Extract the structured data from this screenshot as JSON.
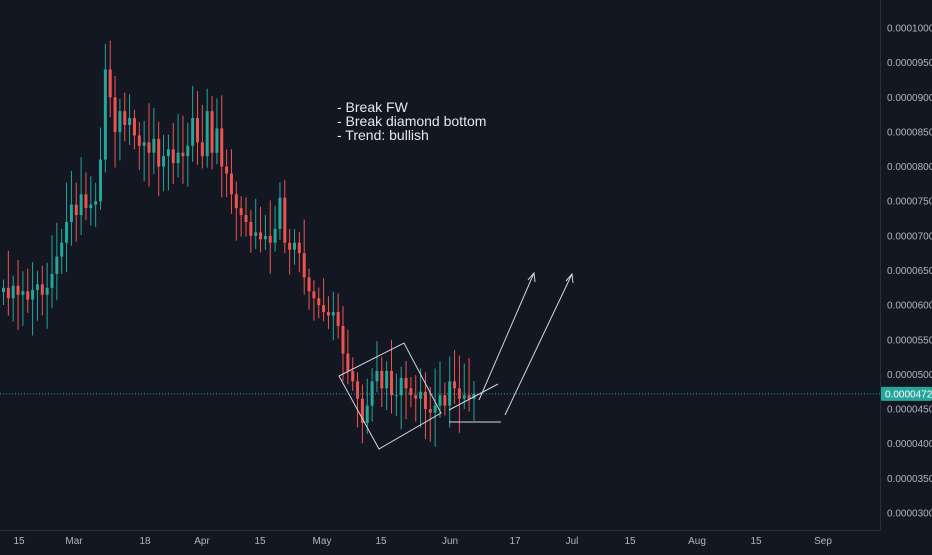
{
  "chart_data": {
    "type": "candlestick",
    "title": "",
    "xlabel": "",
    "ylabel": "",
    "ylim": [
      2.9e-05,
      0.0001035
    ],
    "y_ticks": [
      "0.0000300",
      "0.0000350",
      "0.0000400",
      "0.0000450",
      "0.0000500",
      "0.0000550",
      "0.0000600",
      "0.0000650",
      "0.0000700",
      "0.0000750",
      "0.0000800",
      "0.0000850",
      "0.0000900",
      "0.0000950",
      "0.0001000"
    ],
    "x_ticks": [
      "15",
      "Mar",
      "18",
      "Apr",
      "15",
      "May",
      "15",
      "Jun",
      "17",
      "Jul",
      "15",
      "Aug",
      "15",
      "Sep"
    ],
    "current_price": "0.0000472",
    "current_price_value": 4.72e-05,
    "colors": {
      "background": "#131722",
      "up": "#26a69a",
      "down": "#ef5350",
      "price_line": "#26a69a",
      "text": "#b2b5be",
      "drawing": "#d1d4dc"
    },
    "close_series": [
      6.25e-05,
      6.1e-05,
      6.28e-05,
      6.15e-05,
      6.2e-05,
      6.08e-05,
      6.22e-05,
      6.3e-05,
      6.15e-05,
      6.25e-05,
      6.45e-05,
      6.7e-05,
      6.9e-05,
      7.2e-05,
      7.45e-05,
      7.3e-05,
      7.6e-05,
      7.4e-05,
      7.45e-05,
      7.5e-05,
      8.1e-05,
      9.4e-05,
      9e-05,
      8.5e-05,
      8.8e-05,
      8.6e-05,
      8.7e-05,
      8.45e-05,
      8.3e-05,
      8.35e-05,
      8.2e-05,
      8.4e-05,
      8e-05,
      8.15e-05,
      8.25e-05,
      8.05e-05,
      8.2e-05,
      8.15e-05,
      8.3e-05,
      8.7e-05,
      8.35e-05,
      8.15e-05,
      8.8e-05,
      8.2e-05,
      8.55e-05,
      8e-05,
      7.9e-05,
      7.6e-05,
      7.4e-05,
      7.3e-05,
      7.2e-05,
      7e-05,
      7.05e-05,
      6.95e-05,
      7e-05,
      6.9e-05,
      7.1e-05,
      7.55e-05,
      6.9e-05,
      6.8e-05,
      6.9e-05,
      6.75e-05,
      6.4e-05,
      6.2e-05,
      6.1e-05,
      6e-05,
      5.9e-05,
      5.85e-05,
      5.9e-05,
      5.7e-05,
      5.3e-05,
      5.05e-05,
      4.9e-05,
      4.65e-05,
      4.3e-05,
      4.55e-05,
      4.9e-05,
      5.05e-05,
      4.8e-05,
      5.05e-05,
      4.7e-05,
      4.7e-05,
      4.95e-05,
      4.8e-05,
      4.7e-05,
      4.65e-05,
      4.75e-05,
      4.5e-05,
      4.45e-05,
      4.55e-05,
      4.7e-05,
      4.55e-05,
      4.9e-05,
      4.8e-05,
      4.65e-05,
      4.7e-05,
      4.65e-05,
      4.72e-05
    ],
    "drawings": {
      "annotation_lines": [
        "- Break FW",
        "- Break diamond bottom",
        "- Trend: bullish"
      ]
    }
  }
}
